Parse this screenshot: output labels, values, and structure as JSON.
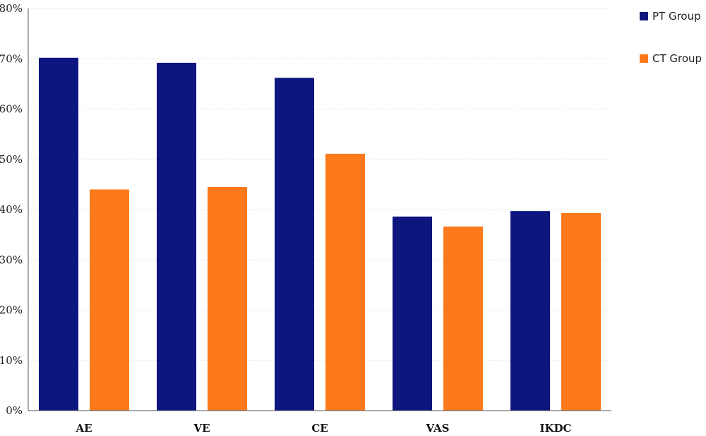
{
  "chart_data": {
    "type": "bar",
    "categories": [
      "AE",
      "VE",
      "CE",
      "VAS",
      "IKDC"
    ],
    "series": [
      {
        "name": "PT Group",
        "color": "#0d157e",
        "values": [
          70.2,
          69.2,
          66.2,
          38.6,
          39.7
        ]
      },
      {
        "name": "CT Group",
        "color": "#fc7a1c",
        "values": [
          44.0,
          44.5,
          51.1,
          36.6,
          39.3
        ]
      }
    ],
    "ylim": [
      0,
      80
    ],
    "yticks": [
      0,
      10,
      20,
      30,
      40,
      50,
      60,
      70,
      80
    ],
    "ytick_labels": [
      "0%",
      "10%",
      "20%",
      "30%",
      "40%",
      "50%",
      "60%",
      "70%",
      "80%"
    ],
    "grid": true,
    "legend_position": "top-right",
    "title": "",
    "xlabel": "",
    "ylabel": ""
  }
}
